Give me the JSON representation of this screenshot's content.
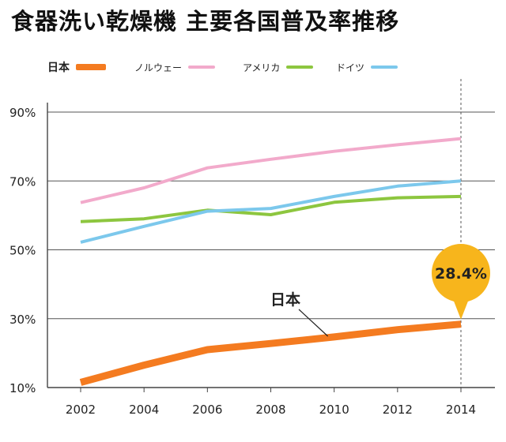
{
  "title": "食器洗い乾燥機 主要各国普及率推移",
  "chart_data": {
    "type": "line",
    "title": "食器洗い乾燥機 主要各国普及率推移",
    "x": [
      2002,
      2004,
      2006,
      2008,
      2010,
      2012,
      2014
    ],
    "x_tick_labels": [
      "2002",
      "2004",
      "2006",
      "2008",
      "2010",
      "2012",
      "2014"
    ],
    "y_tick_values": [
      10,
      30,
      50,
      70,
      90
    ],
    "y_tick_labels": [
      "10%",
      "30%",
      "50%",
      "70%",
      "90%"
    ],
    "ylim": [
      10,
      90
    ],
    "grid": "horizontal",
    "legend_position": "top",
    "series": [
      {
        "name": "日本",
        "color": "#F47B20",
        "values": [
          11.5,
          16.5,
          21,
          22.8,
          24.7,
          26.8,
          28.4
        ],
        "emphasis": true
      },
      {
        "name": "ノルウェー",
        "color": "#F2AACB",
        "values": [
          63.7,
          68,
          73.8,
          76.3,
          78.6,
          80.5,
          82.3
        ]
      },
      {
        "name": "アメリカ",
        "color": "#8DC63F",
        "values": [
          58.2,
          59,
          61.5,
          60.2,
          63.8,
          65.1,
          65.5
        ]
      },
      {
        "name": "ドイツ",
        "color": "#7CC8EC",
        "values": [
          52.2,
          56.8,
          61.2,
          62,
          65.5,
          68.5,
          70
        ]
      }
    ],
    "annotations": [
      {
        "text": "日本",
        "series": "日本"
      },
      {
        "text": "28.4%",
        "series": "日本",
        "x": 2014,
        "value": 28.4,
        "color": "#F7B51C"
      }
    ]
  }
}
